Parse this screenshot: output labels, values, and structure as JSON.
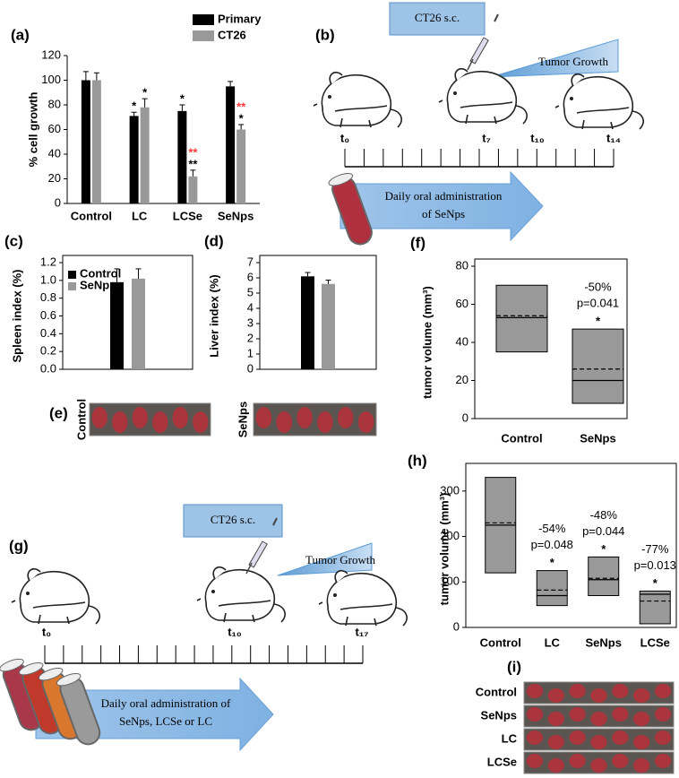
{
  "chart_data": [
    {
      "type": "bar",
      "panel_label": "(a)",
      "ylabel": "% cell growth",
      "categories": [
        "Control",
        "LC",
        "LCSe",
        "SeNps"
      ],
      "series": [
        {
          "name": "Primary",
          "color": "#000000",
          "values": [
            100,
            71,
            75,
            95
          ],
          "errors": [
            7,
            3,
            5,
            4
          ],
          "significance": [
            null,
            "*",
            "*",
            null
          ]
        },
        {
          "name": "CT26",
          "color": "#999999",
          "values": [
            100,
            78,
            22,
            60
          ],
          "errors": [
            6,
            7,
            5,
            4
          ],
          "significance": [
            null,
            "*",
            "**",
            "*"
          ],
          "significance_vs_primary": [
            null,
            null,
            "**",
            "**"
          ],
          "significance_vs_primary_color": "#ff3b3b"
        }
      ],
      "ylim": [
        0,
        120
      ],
      "yticks": [
        0,
        20,
        40,
        60,
        80,
        100,
        120
      ],
      "legend": "top right"
    },
    {
      "type": "bar",
      "panel_label": "(c)",
      "ylabel": "Spleen index (%)",
      "categories": [
        null
      ],
      "series": [
        {
          "name": "Control",
          "color": "#000000",
          "values": [
            0.98
          ],
          "errors": [
            0.15
          ]
        },
        {
          "name": "SeNps",
          "color": "#999999",
          "values": [
            1.02
          ],
          "errors": [
            0.11
          ]
        }
      ],
      "ylim": [
        0,
        1.2
      ],
      "yticks": [
        {
          "value": 0,
          "label": "0.0"
        },
        0.2,
        0.4,
        0.6,
        0.8,
        {
          "value": 1,
          "label": "1.0"
        },
        1.2
      ],
      "legend": "upper left"
    },
    {
      "type": "bar",
      "panel_label": "(d)",
      "ylabel": "Liver index (%)",
      "categories": [
        null
      ],
      "series": [
        {
          "color": "#000000",
          "values": [
            6.1
          ],
          "errors": [
            0.25
          ]
        },
        {
          "color": "#999999",
          "values": [
            5.6
          ],
          "errors": [
            0.25
          ]
        }
      ],
      "ylim": [
        0,
        7
      ],
      "yticks": [
        0,
        1,
        2,
        3,
        4,
        5,
        6,
        7
      ]
    },
    {
      "type": "box",
      "panel_label": "(f)",
      "ylabel": "tumor volume (mm³)",
      "color": "#999999",
      "categories": [
        "Control",
        "SeNps"
      ],
      "low": [
        35,
        8
      ],
      "high": [
        70,
        47
      ],
      "median": [
        53,
        20
      ],
      "mean": [
        54,
        26
      ],
      "change": [
        null,
        "-50%"
      ],
      "p": [
        null,
        "p=0.041"
      ],
      "significance": [
        null,
        "*"
      ],
      "ylim": [
        0,
        80
      ],
      "yticks": [
        0,
        20,
        40,
        60,
        80
      ]
    },
    {
      "type": "box",
      "panel_label": "(h)",
      "ylabel": "tumor volume (mm³)",
      "color": "#999999",
      "categories": [
        "Control",
        "LC",
        "SeNps",
        "LCSe"
      ],
      "low": [
        120,
        48,
        70,
        8
      ],
      "high": [
        330,
        125,
        155,
        80
      ],
      "median": [
        225,
        70,
        105,
        73
      ],
      "mean": [
        230,
        82,
        108,
        58
      ],
      "change": [
        null,
        "-54%",
        "-48%",
        "-77%"
      ],
      "p": [
        null,
        "p=0.048",
        "p=0.044",
        "p=0.013"
      ],
      "significance": [
        null,
        "*",
        "*",
        "*"
      ],
      "ylim": [
        0,
        345
      ],
      "yticks": [
        0,
        100,
        200,
        300
      ]
    }
  ],
  "diagram_b": {
    "panel_label": "(b)",
    "injection": "CT26 s.c.",
    "growth": "Tumor Growth",
    "timepoints": [
      "t₀",
      "t₇",
      "t₁₀",
      "t₁₄"
    ],
    "treatment": [
      "Daily oral administration",
      "of SeNps"
    ]
  },
  "diagram_g": {
    "panel_label": "(g)",
    "injection": "CT26 s.c.",
    "growth": "Tumor Growth",
    "timepoints": [
      "t₀",
      "t₁₀",
      "t₁₇"
    ],
    "treatment": [
      "Daily oral administration of",
      "SeNps, LCSe or LC"
    ]
  },
  "photos_e": {
    "panel_label": "(e)",
    "groups": [
      "Control",
      "SeNps"
    ]
  },
  "photos_i": {
    "panel_label": "(i)",
    "groups": [
      "Control",
      "SeNps",
      "LC",
      "LCSe"
    ]
  }
}
